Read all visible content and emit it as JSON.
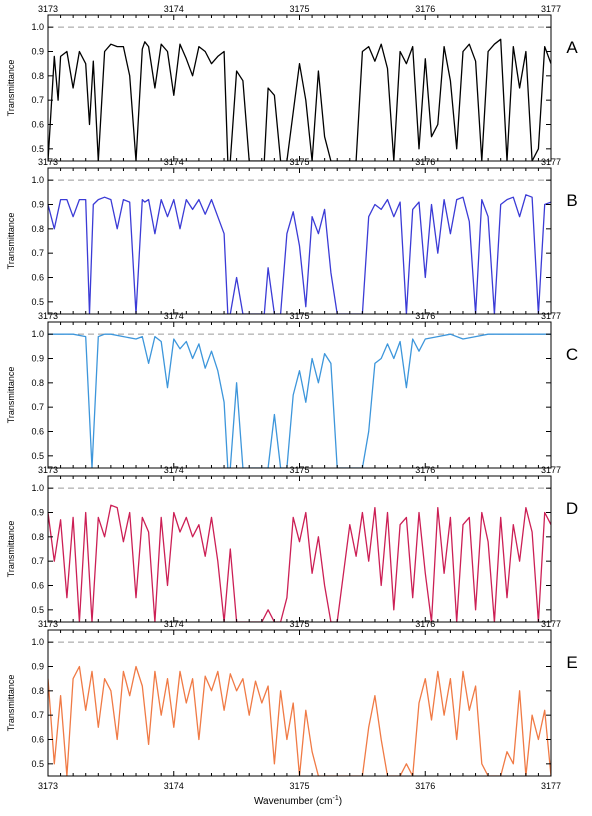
{
  "figure": {
    "xlabel": "Wavenumber (cm",
    "xlabel_sup": "-1",
    "xlabel_end": ")"
  },
  "chart_data": [
    {
      "type": "line",
      "panel_label": "A",
      "ylabel": "Transmittance",
      "color": "#000000",
      "xlim": [
        3173,
        3177
      ],
      "ylim": [
        0.45,
        1.05
      ],
      "xticks": [
        "3173",
        "3174",
        "3175",
        "3176",
        "3177"
      ],
      "yticks": [
        "0.5",
        "0.6",
        "0.7",
        "0.8",
        "0.9",
        "1.0"
      ],
      "reference_line": 1.0,
      "series": [
        {
          "x": [
            3173.0,
            3173.05,
            3173.08,
            3173.1,
            3173.15,
            3173.2,
            3173.25,
            3173.3,
            3173.33,
            3173.36,
            3173.4,
            3173.45,
            3173.5,
            3173.55,
            3173.6,
            3173.65,
            3173.7,
            3173.75,
            3173.77,
            3173.8,
            3173.85,
            3173.9,
            3173.95,
            3174.0,
            3174.05,
            3174.1,
            3174.15,
            3174.2,
            3174.25,
            3174.3,
            3174.35,
            3174.4,
            3174.43,
            3174.45,
            3174.5,
            3174.55,
            3174.6,
            3174.65,
            3174.7,
            3174.72,
            3174.75,
            3174.8,
            3174.85,
            3174.9,
            3174.95,
            3175.0,
            3175.05,
            3175.1,
            3175.15,
            3175.2,
            3175.25,
            3175.3,
            3175.35,
            3175.4,
            3175.45,
            3175.5,
            3175.55,
            3175.6,
            3175.65,
            3175.7,
            3175.75,
            3175.8,
            3175.85,
            3175.9,
            3175.95,
            3176.0,
            3176.05,
            3176.1,
            3176.15,
            3176.2,
            3176.25,
            3176.3,
            3176.35,
            3176.4,
            3176.45,
            3176.5,
            3176.55,
            3176.6,
            3176.65,
            3176.7,
            3176.75,
            3176.8,
            3176.85,
            3176.9,
            3176.95,
            3177.0
          ],
          "y": [
            0.45,
            0.88,
            0.7,
            0.88,
            0.9,
            0.75,
            0.9,
            0.85,
            0.6,
            0.86,
            0.45,
            0.9,
            0.93,
            0.92,
            0.92,
            0.8,
            0.45,
            0.91,
            0.94,
            0.92,
            0.75,
            0.93,
            0.9,
            0.72,
            0.93,
            0.87,
            0.8,
            0.92,
            0.9,
            0.85,
            0.88,
            0.9,
            0.45,
            0.45,
            0.82,
            0.78,
            0.45,
            0.45,
            0.45,
            0.45,
            0.75,
            0.72,
            0.45,
            0.45,
            0.65,
            0.85,
            0.7,
            0.45,
            0.82,
            0.55,
            0.45,
            0.45,
            0.45,
            0.45,
            0.45,
            0.9,
            0.92,
            0.86,
            0.93,
            0.83,
            0.45,
            0.9,
            0.85,
            0.92,
            0.5,
            0.87,
            0.55,
            0.6,
            0.92,
            0.78,
            0.5,
            0.9,
            0.93,
            0.86,
            0.45,
            0.9,
            0.93,
            0.95,
            0.45,
            0.92,
            0.75,
            0.9,
            0.45,
            0.5,
            0.92,
            0.85
          ]
        }
      ]
    },
    {
      "type": "line",
      "panel_label": "B",
      "ylabel": "Transmittance",
      "color": "#3b3bd6",
      "xlim": [
        3173,
        3177
      ],
      "ylim": [
        0.45,
        1.05
      ],
      "xticks": [
        "3173",
        "3174",
        "3175",
        "3176",
        "3177"
      ],
      "yticks": [
        "0.5",
        "0.6",
        "0.7",
        "0.8",
        "0.9",
        "1.0"
      ],
      "reference_line": 1.0,
      "series": [
        {
          "x": [
            3173.0,
            3173.05,
            3173.1,
            3173.15,
            3173.2,
            3173.25,
            3173.3,
            3173.33,
            3173.36,
            3173.4,
            3173.45,
            3173.5,
            3173.55,
            3173.6,
            3173.65,
            3173.7,
            3173.75,
            3173.77,
            3173.8,
            3173.85,
            3173.9,
            3173.95,
            3174.0,
            3174.05,
            3174.1,
            3174.15,
            3174.2,
            3174.25,
            3174.3,
            3174.35,
            3174.4,
            3174.43,
            3174.45,
            3174.5,
            3174.55,
            3174.6,
            3174.65,
            3174.7,
            3174.72,
            3174.75,
            3174.8,
            3174.85,
            3174.9,
            3174.95,
            3175.0,
            3175.05,
            3175.1,
            3175.15,
            3175.2,
            3175.25,
            3175.3,
            3175.35,
            3175.4,
            3175.45,
            3175.5,
            3175.55,
            3175.6,
            3175.65,
            3175.7,
            3175.75,
            3175.8,
            3175.85,
            3175.9,
            3175.95,
            3176.0,
            3176.05,
            3176.1,
            3176.15,
            3176.2,
            3176.25,
            3176.3,
            3176.35,
            3176.4,
            3176.45,
            3176.5,
            3176.55,
            3176.6,
            3176.65,
            3176.7,
            3176.75,
            3176.8,
            3176.85,
            3176.9,
            3176.95,
            3177.0
          ],
          "y": [
            0.9,
            0.8,
            0.92,
            0.92,
            0.85,
            0.92,
            0.92,
            0.45,
            0.9,
            0.92,
            0.93,
            0.92,
            0.8,
            0.92,
            0.91,
            0.45,
            0.92,
            0.91,
            0.92,
            0.78,
            0.92,
            0.85,
            0.92,
            0.8,
            0.92,
            0.88,
            0.92,
            0.86,
            0.92,
            0.85,
            0.78,
            0.45,
            0.45,
            0.6,
            0.45,
            0.45,
            0.45,
            0.45,
            0.45,
            0.64,
            0.45,
            0.45,
            0.78,
            0.87,
            0.73,
            0.48,
            0.85,
            0.78,
            0.88,
            0.62,
            0.45,
            0.45,
            0.45,
            0.45,
            0.45,
            0.85,
            0.9,
            0.88,
            0.92,
            0.85,
            0.91,
            0.45,
            0.88,
            0.91,
            0.6,
            0.9,
            0.7,
            0.92,
            0.78,
            0.92,
            0.93,
            0.83,
            0.45,
            0.92,
            0.85,
            0.45,
            0.9,
            0.92,
            0.93,
            0.85,
            0.94,
            0.93,
            0.45,
            0.9,
            0.91
          ]
        }
      ]
    },
    {
      "type": "line",
      "panel_label": "C",
      "ylabel": "Transmittance",
      "color": "#3d96db",
      "xlim": [
        3173,
        3177
      ],
      "ylim": [
        0.45,
        1.05
      ],
      "xticks": [
        "3173",
        "3174",
        "3175",
        "3176",
        "3177"
      ],
      "yticks": [
        "0.5",
        "0.6",
        "0.7",
        "0.8",
        "0.9",
        "1.0"
      ],
      "reference_line": 1.0,
      "series": [
        {
          "x": [
            3173.0,
            3173.1,
            3173.2,
            3173.3,
            3173.35,
            3173.4,
            3173.45,
            3173.5,
            3173.6,
            3173.7,
            3173.75,
            3173.8,
            3173.85,
            3173.9,
            3173.95,
            3174.0,
            3174.05,
            3174.1,
            3174.15,
            3174.2,
            3174.25,
            3174.3,
            3174.35,
            3174.4,
            3174.43,
            3174.45,
            3174.5,
            3174.55,
            3174.6,
            3174.65,
            3174.7,
            3174.75,
            3174.8,
            3174.85,
            3174.9,
            3174.95,
            3175.0,
            3175.05,
            3175.1,
            3175.15,
            3175.2,
            3175.25,
            3175.3,
            3175.35,
            3175.4,
            3175.45,
            3175.5,
            3175.55,
            3175.6,
            3175.65,
            3175.7,
            3175.75,
            3175.8,
            3175.85,
            3175.9,
            3175.95,
            3176.0,
            3176.1,
            3176.2,
            3176.3,
            3176.4,
            3176.5,
            3176.6,
            3176.7,
            3176.8,
            3176.9,
            3177.0
          ],
          "y": [
            1.0,
            1.0,
            1.0,
            0.99,
            0.45,
            0.99,
            1.0,
            1.0,
            0.99,
            0.98,
            0.99,
            0.88,
            0.99,
            0.97,
            0.78,
            0.98,
            0.94,
            0.97,
            0.9,
            0.96,
            0.86,
            0.93,
            0.85,
            0.72,
            0.45,
            0.45,
            0.8,
            0.45,
            0.45,
            0.45,
            0.45,
            0.45,
            0.67,
            0.45,
            0.45,
            0.75,
            0.85,
            0.72,
            0.9,
            0.8,
            0.92,
            0.88,
            0.45,
            0.45,
            0.45,
            0.45,
            0.45,
            0.6,
            0.88,
            0.9,
            0.96,
            0.9,
            0.97,
            0.78,
            0.98,
            0.93,
            0.98,
            0.99,
            1.0,
            0.98,
            0.99,
            1.0,
            1.0,
            1.0,
            1.0,
            1.0,
            1.0
          ]
        }
      ]
    },
    {
      "type": "line",
      "panel_label": "D",
      "ylabel": "Transmittance",
      "color": "#cc1f55",
      "xlim": [
        3173,
        3177
      ],
      "ylim": [
        0.45,
        1.05
      ],
      "xticks": [
        "3173",
        "3174",
        "3175",
        "3176",
        "3177"
      ],
      "yticks": [
        "0.5",
        "0.6",
        "0.7",
        "0.8",
        "0.9",
        "1.0"
      ],
      "reference_line": 1.0,
      "series": [
        {
          "x": [
            3173.0,
            3173.05,
            3173.1,
            3173.15,
            3173.2,
            3173.25,
            3173.3,
            3173.35,
            3173.4,
            3173.45,
            3173.5,
            3173.55,
            3173.6,
            3173.65,
            3173.7,
            3173.75,
            3173.8,
            3173.85,
            3173.9,
            3173.95,
            3174.0,
            3174.05,
            3174.1,
            3174.15,
            3174.2,
            3174.25,
            3174.3,
            3174.35,
            3174.4,
            3174.45,
            3174.5,
            3174.55,
            3174.6,
            3174.65,
            3174.7,
            3174.75,
            3174.8,
            3174.85,
            3174.9,
            3174.95,
            3175.0,
            3175.05,
            3175.1,
            3175.15,
            3175.2,
            3175.25,
            3175.3,
            3175.35,
            3175.4,
            3175.45,
            3175.5,
            3175.55,
            3175.6,
            3175.65,
            3175.7,
            3175.75,
            3175.8,
            3175.85,
            3175.9,
            3175.95,
            3176.0,
            3176.05,
            3176.1,
            3176.15,
            3176.2,
            3176.25,
            3176.3,
            3176.35,
            3176.4,
            3176.45,
            3176.5,
            3176.55,
            3176.6,
            3176.65,
            3176.7,
            3176.75,
            3176.8,
            3176.85,
            3176.9,
            3176.95,
            3177.0
          ],
          "y": [
            0.9,
            0.7,
            0.87,
            0.55,
            0.88,
            0.45,
            0.9,
            0.45,
            0.88,
            0.8,
            0.93,
            0.92,
            0.78,
            0.9,
            0.55,
            0.88,
            0.82,
            0.45,
            0.88,
            0.6,
            0.9,
            0.82,
            0.88,
            0.8,
            0.85,
            0.72,
            0.88,
            0.7,
            0.45,
            0.75,
            0.45,
            0.45,
            0.45,
            0.45,
            0.45,
            0.5,
            0.45,
            0.45,
            0.55,
            0.88,
            0.78,
            0.9,
            0.65,
            0.8,
            0.6,
            0.45,
            0.45,
            0.65,
            0.85,
            0.72,
            0.9,
            0.7,
            0.92,
            0.6,
            0.9,
            0.5,
            0.85,
            0.88,
            0.55,
            0.9,
            0.65,
            0.45,
            0.92,
            0.65,
            0.88,
            0.45,
            0.85,
            0.88,
            0.5,
            0.9,
            0.78,
            0.45,
            0.88,
            0.55,
            0.85,
            0.7,
            0.92,
            0.82,
            0.45,
            0.9,
            0.85
          ]
        }
      ]
    },
    {
      "type": "line",
      "panel_label": "E",
      "ylabel": "Transmittance",
      "color": "#f07a45",
      "xlim": [
        3173,
        3177
      ],
      "ylim": [
        0.45,
        1.05
      ],
      "xticks": [
        "3173",
        "3174",
        "3175",
        "3176",
        "3177"
      ],
      "yticks": [
        "0.5",
        "0.6",
        "0.7",
        "0.8",
        "0.9",
        "1.0"
      ],
      "reference_line": 1.0,
      "series": [
        {
          "x": [
            3173.0,
            3173.05,
            3173.1,
            3173.15,
            3173.2,
            3173.25,
            3173.3,
            3173.35,
            3173.4,
            3173.45,
            3173.5,
            3173.55,
            3173.6,
            3173.65,
            3173.7,
            3173.75,
            3173.8,
            3173.85,
            3173.9,
            3173.95,
            3174.0,
            3174.05,
            3174.1,
            3174.15,
            3174.2,
            3174.25,
            3174.3,
            3174.35,
            3174.4,
            3174.45,
            3174.5,
            3174.55,
            3174.6,
            3174.65,
            3174.7,
            3174.75,
            3174.8,
            3174.85,
            3174.9,
            3174.95,
            3175.0,
            3175.05,
            3175.1,
            3175.15,
            3175.2,
            3175.25,
            3175.3,
            3175.35,
            3175.4,
            3175.45,
            3175.5,
            3175.55,
            3175.6,
            3175.65,
            3175.7,
            3175.75,
            3175.8,
            3175.85,
            3175.9,
            3175.95,
            3176.0,
            3176.05,
            3176.1,
            3176.15,
            3176.2,
            3176.25,
            3176.3,
            3176.35,
            3176.4,
            3176.45,
            3176.5,
            3176.55,
            3176.6,
            3176.65,
            3176.7,
            3176.75,
            3176.8,
            3176.85,
            3176.9,
            3176.95,
            3177.0
          ],
          "y": [
            0.85,
            0.5,
            0.78,
            0.45,
            0.85,
            0.9,
            0.72,
            0.88,
            0.65,
            0.85,
            0.8,
            0.6,
            0.88,
            0.78,
            0.9,
            0.82,
            0.58,
            0.88,
            0.7,
            0.85,
            0.65,
            0.88,
            0.75,
            0.85,
            0.6,
            0.86,
            0.8,
            0.88,
            0.72,
            0.87,
            0.8,
            0.85,
            0.7,
            0.84,
            0.75,
            0.82,
            0.5,
            0.8,
            0.6,
            0.75,
            0.45,
            0.72,
            0.55,
            0.45,
            0.45,
            0.45,
            0.45,
            0.45,
            0.45,
            0.45,
            0.45,
            0.65,
            0.78,
            0.6,
            0.45,
            0.45,
            0.45,
            0.5,
            0.45,
            0.75,
            0.85,
            0.68,
            0.88,
            0.7,
            0.85,
            0.6,
            0.88,
            0.72,
            0.82,
            0.5,
            0.45,
            0.45,
            0.45,
            0.55,
            0.5,
            0.8,
            0.45,
            0.7,
            0.6,
            0.72,
            0.45
          ]
        }
      ]
    }
  ]
}
